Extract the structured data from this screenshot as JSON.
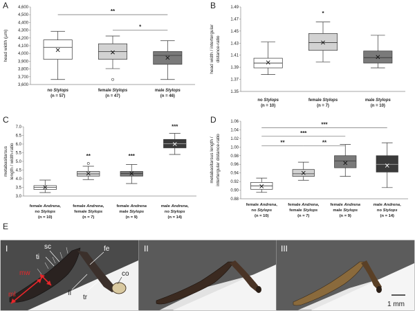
{
  "colors": {
    "no_stylops": "#ffffff",
    "female_stylops": "#d2d2d2",
    "male_stylops": "#7a7a7a",
    "female_female": "#d2d2d2",
    "male_no": "#3a3a3a",
    "edge": "#333333",
    "sig_line": "#7f7f7f",
    "ml_arrow": "#e8262a"
  },
  "chart_data": [
    {
      "panel": "A",
      "type": "box",
      "ylabel": "head width (µm)",
      "ylim": [
        3600,
        4600
      ],
      "yticks": [
        3600,
        3700,
        3800,
        3900,
        4000,
        4100,
        4200,
        4300,
        4400,
        4500,
        4600
      ],
      "ytick_labels": [
        "3,600",
        "3,700",
        "3,800",
        "3,900",
        "4,000",
        "4,100",
        "4,200",
        "4,300",
        "4,400",
        "4,500",
        "4,600"
      ],
      "groups": [
        {
          "label": [
            "no Stylops",
            "(n = 57)"
          ],
          "color": "no_stylops",
          "min": 3665,
          "q1": 3925,
          "median": 4080,
          "q3": 4175,
          "max": 4285,
          "mean": 4045,
          "outliers": []
        },
        {
          "label": [
            "female Stylops",
            "(n = 47)"
          ],
          "color": "female_stylops",
          "min": 3805,
          "q1": 3925,
          "median": 4025,
          "q3": 4125,
          "max": 4225,
          "mean": 4015,
          "outliers": [
            3665
          ]
        },
        {
          "label": [
            "male Stylops",
            "(n = 46)"
          ],
          "color": "male_stylops",
          "min": 3665,
          "q1": 3860,
          "median": 3975,
          "q3": 4025,
          "max": 4165,
          "mean": 3945,
          "outliers": []
        }
      ],
      "significance": [
        {
          "from": 0,
          "to": 2,
          "label": "**",
          "y": 4500
        },
        {
          "from": 1,
          "to": 2,
          "label": "*",
          "y": 4300
        }
      ]
    },
    {
      "panel": "B",
      "type": "box",
      "ylabel": [
        "head width / intertergular",
        "distance-ratio"
      ],
      "ylim": [
        1.35,
        1.49
      ],
      "yticks": [
        1.35,
        1.37,
        1.39,
        1.41,
        1.43,
        1.45,
        1.47,
        1.49
      ],
      "ytick_labels": [
        "1.35",
        "1.37",
        "1.39",
        "1.41",
        "1.43",
        "1.45",
        "1.47",
        "1.49"
      ],
      "groups": [
        {
          "label": [
            "no Stylops",
            "(n = 10)"
          ],
          "color": "no_stylops",
          "min": 1.378,
          "q1": 1.389,
          "median": 1.397,
          "q3": 1.405,
          "max": 1.432,
          "mean": 1.398,
          "outliers": []
        },
        {
          "label": [
            "female Stylops",
            "(n = 7)"
          ],
          "color": "female_stylops",
          "min": 1.399,
          "q1": 1.418,
          "median": 1.431,
          "q3": 1.446,
          "max": 1.465,
          "mean": 1.431,
          "outliers": []
        },
        {
          "label": [
            "male Stylops",
            "(n = 10)"
          ],
          "color": "male_stylops",
          "min": 1.389,
          "q1": 1.397,
          "median": 1.406,
          "q3": 1.417,
          "max": 1.443,
          "mean": 1.407,
          "outliers": []
        }
      ],
      "stars": [
        {
          "group": 1,
          "label": "*",
          "y": 1.476
        }
      ]
    },
    {
      "panel": "C",
      "type": "box",
      "ylabel": [
        "metabasitarsus",
        "length / width-ratio"
      ],
      "ylim": [
        3.0,
        7.0
      ],
      "yticks": [
        3.0,
        3.5,
        4.0,
        4.5,
        5.0,
        5.5,
        6.0,
        6.5,
        7.0
      ],
      "ytick_labels": [
        "3.0",
        "3.5",
        "4.0",
        "4.5",
        "5.0",
        "5.5",
        "6.0",
        "6.5",
        "7.0"
      ],
      "groups": [
        {
          "label": [
            "female Andrena,",
            "no Stylops",
            "(n = 10)"
          ],
          "color": "no_stylops",
          "min": 3.2,
          "q1": 3.38,
          "median": 3.5,
          "q3": 3.6,
          "max": 3.92,
          "mean": 3.5,
          "outliers": []
        },
        {
          "label": [
            "female Andrena,",
            "female Stylops",
            "(n = 7)"
          ],
          "color": "female_female",
          "min": 3.95,
          "q1": 4.15,
          "median": 4.28,
          "q3": 4.42,
          "max": 4.72,
          "mean": 4.3,
          "outliers": [
            4.88
          ]
        },
        {
          "label": [
            "female Andrena",
            "male Stylops",
            "(n = 9)"
          ],
          "color": "male_stylops",
          "min": 3.72,
          "q1": 4.15,
          "median": 4.3,
          "q3": 4.42,
          "max": 4.82,
          "mean": 4.3,
          "outliers": []
        },
        {
          "label": [
            "male Andrena,",
            "no Stylops",
            "(n = 14)"
          ],
          "color": "male_no",
          "min": 5.4,
          "q1": 5.78,
          "median": 6.02,
          "q3": 6.27,
          "max": 6.62,
          "mean": 6.0,
          "outliers": []
        }
      ],
      "stars": [
        {
          "group": 1,
          "label": "**",
          "y": 5.2
        },
        {
          "group": 2,
          "label": "***",
          "y": 5.2
        },
        {
          "group": 3,
          "label": "***",
          "y": 6.9
        }
      ]
    },
    {
      "panel": "D",
      "type": "box",
      "ylabel": [
        "metabasitarsus length /",
        "intertergular distance-ratio"
      ],
      "ylim": [
        0.88,
        1.06
      ],
      "yticks": [
        0.88,
        0.9,
        0.92,
        0.94,
        0.96,
        0.98,
        1.0,
        1.02,
        1.04,
        1.06
      ],
      "ytick_labels": [
        "0.88",
        "0.90",
        "0.92",
        "0.94",
        "0.96",
        "0.98",
        "1.00",
        "1.02",
        "1.04",
        "1.06"
      ],
      "groups": [
        {
          "label": [
            "female Andrena,",
            "no Stylops",
            "(n = 10)"
          ],
          "color": "no_stylops",
          "min": 0.895,
          "q1": 0.902,
          "median": 0.91,
          "q3": 0.918,
          "max": 0.928,
          "mean": 0.909,
          "outliers": []
        },
        {
          "label": [
            "female Andrena,",
            "female Stylops",
            "(n = 7)"
          ],
          "color": "female_female",
          "min": 0.923,
          "q1": 0.932,
          "median": 0.938,
          "q3": 0.948,
          "max": 0.965,
          "mean": 0.94,
          "outliers": []
        },
        {
          "label": [
            "female Andrena",
            "male Stylops",
            "(n = 9)"
          ],
          "color": "male_stylops",
          "min": 0.932,
          "q1": 0.952,
          "median": 0.968,
          "q3": 0.98,
          "max": 1.006,
          "mean": 0.963,
          "outliers": []
        },
        {
          "label": [
            "male Andrena,",
            "no Stylops",
            "(n = 14)"
          ],
          "color": "male_no",
          "min": 0.906,
          "q1": 0.942,
          "median": 0.96,
          "q3": 0.98,
          "max": 1.01,
          "mean": 0.957,
          "outliers": []
        }
      ],
      "significance": [
        {
          "from": 0,
          "to": 3,
          "label": "***",
          "y": 1.045
        },
        {
          "from": 0,
          "to": 2,
          "label": "***",
          "y": 1.025
        },
        {
          "from": 0,
          "to": 1,
          "label": "**",
          "y": 1.003
        },
        {
          "from": 1,
          "to": 2,
          "label": "**",
          "y": 1.003
        }
      ]
    }
  ],
  "panel_e": {
    "letter": "E",
    "subpanels": [
      "I",
      "II",
      "III"
    ],
    "labels": {
      "sc": "sc",
      "ti": "ti",
      "fe": "fe",
      "mw": "mw",
      "ml": "ml",
      "co": "co",
      "fl": "fl",
      "tr": "tr"
    },
    "scale_bar": "1 mm"
  }
}
